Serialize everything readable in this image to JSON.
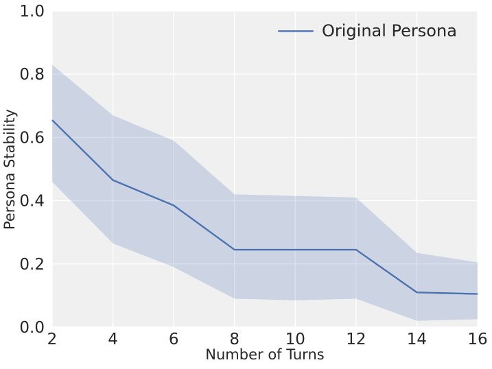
{
  "chart_data": {
    "type": "line",
    "title": "",
    "xlabel": "Number of Turns",
    "ylabel": "Persona Stability",
    "x": [
      2,
      4,
      6,
      8,
      10,
      12,
      14,
      16
    ],
    "series": [
      {
        "name": "Original Persona",
        "values": [
          0.655,
          0.465,
          0.385,
          0.245,
          0.245,
          0.245,
          0.11,
          0.105
        ],
        "band_upper": [
          0.83,
          0.67,
          0.59,
          0.42,
          0.415,
          0.41,
          0.235,
          0.205
        ],
        "band_lower": [
          0.46,
          0.265,
          0.19,
          0.09,
          0.085,
          0.09,
          0.02,
          0.025
        ]
      }
    ],
    "xlim": [
      2,
      16
    ],
    "ylim": [
      0.0,
      1.0
    ],
    "x_ticks": [
      2,
      4,
      6,
      8,
      10,
      12,
      14,
      16
    ],
    "x_tick_labels": [
      "2",
      "4",
      "6",
      "8",
      "10",
      "12",
      "14",
      "16"
    ],
    "y_ticks": [
      0.0,
      0.2,
      0.4,
      0.6,
      0.8,
      1.0
    ],
    "y_tick_labels": [
      "0.0",
      "0.2",
      "0.4",
      "0.6",
      "0.8",
      "1.0"
    ],
    "grid": true,
    "legend_position": "upper right",
    "colors": {
      "line": "#4c72b0",
      "band_opacity": 0.22,
      "plot_bg": "#f0f0f1",
      "grid": "#ffffff",
      "text": "#262626",
      "legend_sample": "#6a88bf"
    }
  }
}
